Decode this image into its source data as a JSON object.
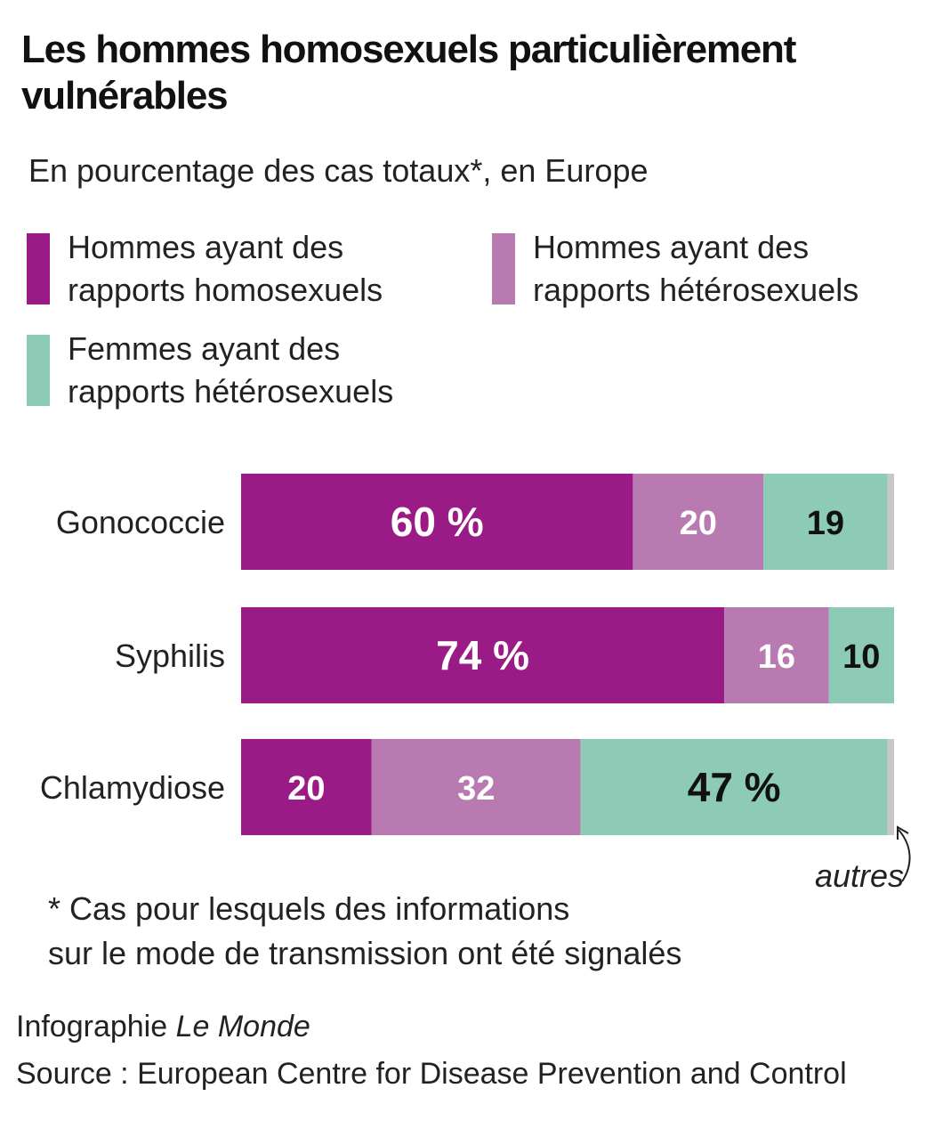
{
  "title": "Les hommes homosexuels particulièrement vulnérables",
  "subtitle": "En pourcentage des cas totaux*, en Europe",
  "colors": {
    "msm": "#9b1b86",
    "hetero_men": "#b979b1",
    "hetero_women": "#8ecbb6",
    "other": "#c7c7c7"
  },
  "legend": [
    {
      "label": "Hommes ayant des\nrapports homosexuels",
      "color_key": "msm"
    },
    {
      "label": "Hommes ayant des\nrapports hétérosexuels",
      "color_key": "hetero_men"
    },
    {
      "label": "Femmes ayant des\nrapports hétérosexuels",
      "color_key": "hetero_women"
    }
  ],
  "chart_data": {
    "type": "bar",
    "orientation": "horizontal",
    "stacked": true,
    "xlim": [
      0,
      100
    ],
    "categories": [
      "Gonococcie",
      "Syphilis",
      "Chlamydiose"
    ],
    "series": [
      {
        "name": "Hommes ayant des rapports homosexuels",
        "values": [
          60,
          74,
          20
        ],
        "labels": [
          "60 %",
          "74 %",
          "20"
        ],
        "color_key": "msm"
      },
      {
        "name": "Hommes ayant des rapports hétérosexuels",
        "values": [
          20,
          16,
          32
        ],
        "labels": [
          "20",
          "16",
          "32"
        ],
        "color_key": "hetero_men"
      },
      {
        "name": "Femmes ayant des rapports hétérosexuels",
        "values": [
          19,
          10,
          47
        ],
        "labels": [
          "19",
          "10",
          "47 %"
        ],
        "color_key": "hetero_women"
      },
      {
        "name": "autres",
        "values": [
          1,
          0,
          1
        ],
        "labels": [
          "",
          "",
          ""
        ],
        "color_key": "other"
      }
    ],
    "annotation": "autres"
  },
  "footnote": "* Cas pour lesquels des informations\nsur le mode de transmission ont été signalés",
  "credit": {
    "prefix": "Infographie ",
    "publication": "Le Monde"
  },
  "source": "Source : European Centre for Disease Prevention and Control"
}
